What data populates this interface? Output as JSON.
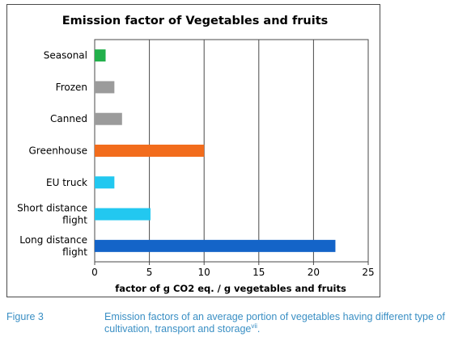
{
  "chart_data": {
    "type": "bar",
    "orientation": "horizontal",
    "title": "Emission factor of Vegetables and fruits",
    "xlabel": "factor of g CO2 eq. / g vegetables and fruits",
    "ylabel": "",
    "xlim": [
      0,
      25
    ],
    "xticks": [
      "0",
      "5",
      "10",
      "15",
      "20",
      "25"
    ],
    "grid": "vertical",
    "categories": [
      [
        "Seasonal"
      ],
      [
        "Frozen"
      ],
      [
        "Canned"
      ],
      [
        "Greenhouse"
      ],
      [
        "EU truck"
      ],
      [
        "Short distance",
        "flight"
      ],
      [
        "Long distance",
        "flight"
      ]
    ],
    "values": [
      1.0,
      1.8,
      2.5,
      10.0,
      1.8,
      5.1,
      22.0
    ],
    "colors": [
      "#22b04b",
      "#9b9b9b",
      "#9b9b9b",
      "#f26c1c",
      "#22c8f0",
      "#22c8f0",
      "#1464c8"
    ]
  },
  "caption": {
    "label": "Figure 3",
    "text": "Emission factors of an average portion of vegetables having different type of cultivation, transport and storage",
    "superscript": "vii",
    "end": "."
  }
}
